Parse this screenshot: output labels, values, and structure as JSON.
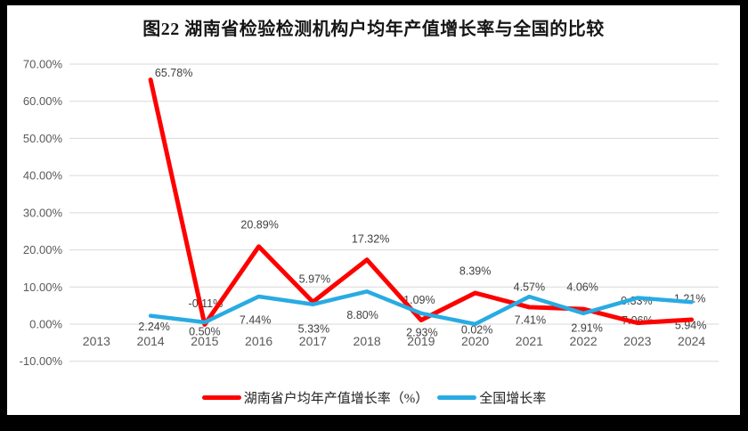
{
  "title": "图22 湖南省检验检测机构户均年产值增长率与全国的比较",
  "chart_data": {
    "type": "line",
    "title": "图22 湖南省检验检测机构户均年产值增长率与全国的比较",
    "categories": [
      "2013",
      "2014",
      "2015",
      "2016",
      "2017",
      "2018",
      "2019",
      "2020",
      "2021",
      "2022",
      "2023",
      "2024"
    ],
    "xlabel": "",
    "ylabel": "",
    "grid": true,
    "y_axis": {
      "min": -10,
      "max": 70,
      "step": 10,
      "tick_labels": [
        "70.00%",
        "60.00%",
        "50.00%",
        "40.00%",
        "30.00%",
        "20.00%",
        "10.00%",
        "0.00%",
        "-10.00%"
      ]
    },
    "colors": {
      "grid": "#d9d9d9",
      "axis_text": "#595959",
      "data_label_text": "#3f3f3f",
      "hunan_red": "#ff0000",
      "national_blue": "#29abe2"
    },
    "series": [
      {
        "name": "湖南省户均年产值增长率（%）",
        "color": "#ff0000",
        "stroke_width": 5,
        "values": [
          null,
          65.78,
          -0.11,
          20.89,
          5.97,
          17.32,
          1.09,
          8.39,
          4.57,
          4.06,
          0.33,
          1.21
        ],
        "point_labels": [
          "",
          "65.78%",
          "-0.11%",
          "20.89%",
          "5.97%",
          "17.32%",
          "1.09%",
          "8.39%",
          "4.57%",
          "4.06%",
          "0.33%",
          "1.21%"
        ],
        "label_side": "above",
        "label_offsets": [
          [
            0,
            0
          ],
          [
            26,
            -8
          ],
          [
            1,
            -24
          ],
          [
            1,
            -25
          ],
          [
            2,
            -26
          ],
          [
            4,
            -24
          ],
          [
            -2,
            -23
          ],
          [
            0,
            -25
          ],
          [
            0,
            -23
          ],
          [
            -1,
            -25
          ],
          [
            -1,
            -25
          ],
          [
            -2,
            -24
          ]
        ]
      },
      {
        "name": "全国增长率",
        "color": "#29abe2",
        "stroke_width": 4.5,
        "values": [
          null,
          2.24,
          0.5,
          7.44,
          5.33,
          8.8,
          2.93,
          0.02,
          7.41,
          2.91,
          7.06,
          5.94
        ],
        "point_labels": [
          "",
          "2.24%",
          "0.50%",
          "7.44%",
          "5.33%",
          "8.80%",
          "2.93%",
          "0.02%",
          "7.41%",
          "2.91%",
          "7.06%",
          "5.94%"
        ],
        "label_side": "below",
        "label_offsets": [
          [
            0,
            0
          ],
          [
            4,
            12
          ],
          [
            0,
            10
          ],
          [
            -4,
            26
          ],
          [
            1,
            27
          ],
          [
            -5,
            26
          ],
          [
            1,
            21
          ],
          [
            2,
            6
          ],
          [
            1,
            26
          ],
          [
            4,
            16
          ],
          [
            0,
            25
          ],
          [
            -1,
            26
          ]
        ]
      }
    ],
    "legend": {
      "position": "bottom",
      "entries": [
        "湖南省户均年产值增长率（%）",
        "全国增长率"
      ]
    }
  }
}
